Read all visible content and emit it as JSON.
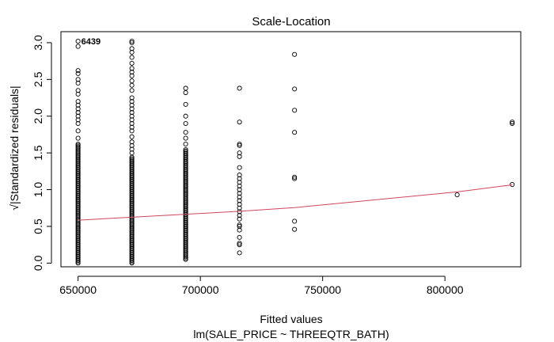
{
  "chart_data": {
    "type": "scatter",
    "title": "Scale-Location",
    "xlabel": "Fitted values",
    "sub_label": "lm(SALE_PRICE ~ THREEQTR_BATH)",
    "ylabel": "√|Standardized residuals|",
    "xlim": [
      643000,
      831000
    ],
    "ylim": [
      -0.05,
      3.15
    ],
    "x_ticks": [
      650000,
      700000,
      750000,
      800000
    ],
    "x_tick_labels": [
      "650000",
      "700000",
      "750000",
      "800000"
    ],
    "y_ticks": [
      0.0,
      0.5,
      1.0,
      1.5,
      2.0,
      2.5,
      3.0
    ],
    "y_tick_labels": [
      "0.0",
      "0.5",
      "1.0",
      "1.5",
      "2.0",
      "2.5",
      "3.0"
    ],
    "grid": false,
    "legend": "none",
    "point_color": "#000000",
    "smooth_color": "#d0455a",
    "groups": [
      {
        "x": 650000,
        "dense_min": 0.0,
        "dense_max": 1.62,
        "outliers": [
          1.7,
          1.8,
          1.9,
          1.95,
          2.0,
          2.05,
          2.1,
          2.15,
          2.2,
          2.3,
          2.35,
          2.45,
          2.5,
          2.58,
          2.62,
          2.95,
          3.02
        ]
      },
      {
        "x": 672000,
        "dense_min": 0.0,
        "dense_max": 1.45,
        "outliers": [
          1.5,
          1.55,
          1.6,
          1.65,
          1.72,
          1.8,
          1.85,
          1.9,
          1.95,
          2.0,
          2.05,
          2.1,
          2.15,
          2.2,
          2.25,
          2.35,
          2.42,
          2.48,
          2.55,
          2.6,
          2.65,
          2.72,
          2.8,
          2.87,
          2.92,
          3.0,
          3.02
        ]
      },
      {
        "x": 694000,
        "dense_min": 0.05,
        "dense_max": 1.55,
        "outliers": [
          1.62,
          1.7,
          1.78,
          1.9,
          2.0,
          2.16,
          2.32,
          2.38
        ]
      },
      {
        "x": 716000,
        "points": [
          0.14,
          0.25,
          0.27,
          0.35,
          0.45,
          0.5,
          0.52,
          0.6,
          0.65,
          0.7,
          0.75,
          0.8,
          0.85,
          0.9,
          0.95,
          1.0,
          1.05,
          1.1,
          1.15,
          1.2,
          1.3,
          1.45,
          1.5,
          1.6,
          1.62,
          1.92,
          2.38
        ]
      },
      {
        "x": 738500,
        "points": [
          0.46,
          0.57,
          1.15,
          1.17,
          1.78,
          2.08,
          2.37,
          2.84
        ]
      },
      {
        "x": 805000,
        "points": [
          0.93
        ]
      },
      {
        "x": 827500,
        "points": [
          1.07,
          1.9,
          1.92
        ]
      }
    ],
    "smooth_line": {
      "x": [
        650000,
        672000,
        694000,
        716000,
        738500,
        805000,
        827500
      ],
      "y": [
        0.585,
        0.625,
        0.665,
        0.705,
        0.755,
        0.97,
        1.065
      ]
    },
    "point_labels": [
      {
        "x": 650000,
        "y": 3.02,
        "text": "6439"
      }
    ]
  }
}
